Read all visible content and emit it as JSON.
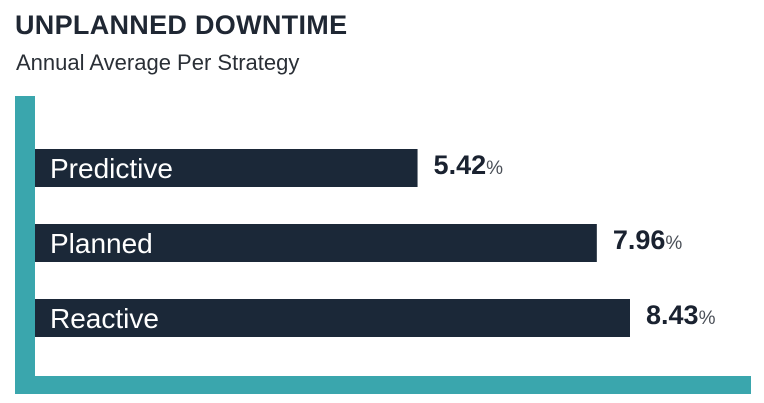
{
  "title": "UNPLANNED DOWNTIME",
  "subtitle": "Annual Average Per Strategy",
  "colors": {
    "bar": "#1b2838",
    "axis": "#3aa6ad",
    "label": "#ffffff",
    "value": "#1a2230"
  },
  "chart_data": {
    "type": "bar",
    "orientation": "horizontal",
    "title": "UNPLANNED DOWNTIME",
    "subtitle": "Annual Average Per Strategy",
    "categories": [
      "Predictive",
      "Planned",
      "Reactive"
    ],
    "values": [
      5.42,
      7.96,
      8.43
    ],
    "value_labels": [
      "5.42",
      "7.96",
      "8.43"
    ],
    "unit": "%",
    "grid": false
  }
}
